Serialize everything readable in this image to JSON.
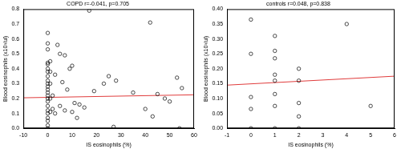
{
  "chart_data": [
    {
      "type": "scatter",
      "title": "COPD r=-0.041, p=0.705",
      "x_label": "IS eosinophils (%)",
      "y_label": "Blood eosinophils (x10³/ul)",
      "x": [
        0,
        0,
        0,
        0,
        0,
        0,
        0,
        0,
        0,
        0,
        0,
        0,
        0,
        0,
        0,
        0,
        0,
        0,
        0,
        0,
        0,
        0,
        0,
        1,
        1,
        1,
        1,
        1,
        2,
        2,
        3,
        3,
        4,
        5,
        5,
        6,
        7,
        7,
        8,
        9,
        10,
        10,
        11,
        12,
        13,
        15,
        17,
        19,
        23,
        25,
        27,
        28,
        35,
        40,
        42,
        43,
        45,
        48,
        50,
        53,
        54,
        55
      ],
      "values": [
        0.64,
        0.57,
        0.53,
        0.44,
        0.43,
        0.4,
        0.38,
        0.35,
        0.32,
        0.3,
        0.28,
        0.26,
        0.24,
        0.22,
        0.2,
        0.18,
        0.15,
        0.12,
        0.1,
        0.07,
        0.05,
        0.02,
        0,
        0.45,
        0.38,
        0.3,
        0.2,
        0.11,
        0.22,
        0.13,
        0.1,
        0.36,
        0.56,
        0.5,
        0.15,
        0.31,
        0.49,
        0.12,
        0.26,
        0.4,
        0.42,
        0.11,
        0.17,
        0.07,
        0.16,
        0.14,
        0.79,
        0.25,
        0.3,
        0.35,
        0.01,
        0.32,
        0.24,
        0.13,
        0.71,
        0.08,
        0.23,
        0.2,
        0.18,
        0.34,
        0,
        0.27
      ],
      "color": "#000000",
      "marker": "circle",
      "fit_line": {
        "x": [
          -10,
          60
        ],
        "values": [
          0.205,
          0.225
        ],
        "color": "#e03c3c"
      },
      "xlim": [
        -10,
        60
      ],
      "xticks": [
        -10,
        0,
        10,
        20,
        30,
        40,
        50,
        60
      ],
      "ylim": [
        0,
        0.8
      ],
      "yticks": [
        {
          "value": 0,
          "label": "0.0"
        },
        0.1,
        0.2,
        0.3,
        0.4,
        0.5,
        0.6,
        0.7,
        0.8
      ],
      "grid": false
    },
    {
      "type": "scatter",
      "title": "controls r=0.048, p=0.838",
      "x_label": "IS eosinophils (%)",
      "y_label": "Blood eosinophils (x10³/ul)",
      "x": [
        0,
        0,
        0,
        0,
        0,
        1,
        1,
        1,
        1,
        1,
        1,
        1,
        1,
        2,
        2,
        2,
        2,
        2,
        4,
        5
      ],
      "values": [
        0.365,
        0.25,
        0.105,
        0.065,
        0,
        0.31,
        0.26,
        0.235,
        0.18,
        0.16,
        0.115,
        0.075,
        0,
        0.2,
        0.16,
        0.085,
        0.04,
        0,
        0.35,
        0.075
      ],
      "color": "#000000",
      "marker": "circle",
      "fit_line": {
        "x": [
          -1,
          6
        ],
        "values": [
          0.145,
          0.175
        ],
        "color": "#e03c3c"
      },
      "xlim": [
        -1,
        6
      ],
      "xticks": [
        -1,
        0,
        1,
        2,
        3,
        4,
        5,
        6
      ],
      "ylim": [
        0,
        0.4
      ],
      "yticks": [
        {
          "value": 0,
          "label": "0.00"
        },
        0.05,
        {
          "value": 0.1,
          "label": "0.10"
        },
        0.15,
        {
          "value": 0.2,
          "label": "0.20"
        },
        0.25,
        {
          "value": 0.3,
          "label": "0.30"
        },
        0.35,
        {
          "value": 0.4,
          "label": "0.40"
        }
      ],
      "grid": false
    }
  ]
}
